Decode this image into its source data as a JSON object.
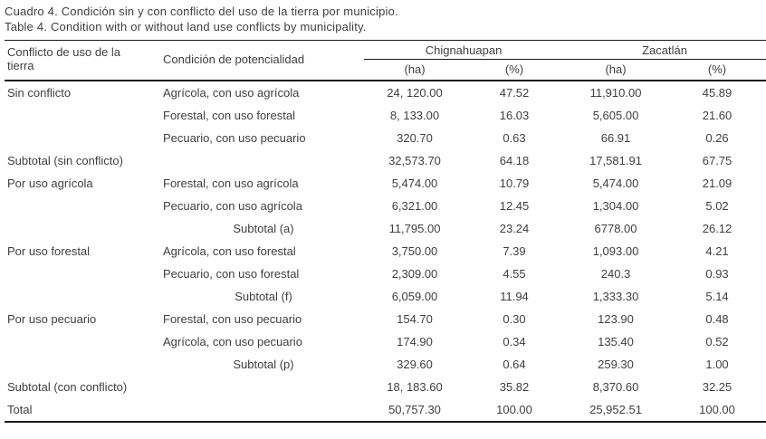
{
  "colors": {
    "text": "#3f3f3f",
    "rule": "#1a1a1a",
    "background": "#ffffff"
  },
  "caption_es": "Cuadro 4. Condición sin y con conflicto del uso de la tierra por municipio.",
  "caption_en": "Table 4. Condition with or without land use conflicts by municipality.",
  "table": {
    "col1_header": "Conflicto de uso de la tierra",
    "col2_header": "Condición de potencialidad",
    "group_headers": [
      "Chignahuapan",
      "Zacatlán"
    ],
    "unit_headers": [
      "(ha)",
      "(%)",
      "(ha)",
      "(%)"
    ],
    "rows": [
      {
        "conflict": "Sin conflicto",
        "condition": "Agrícola, con uso agrícola",
        "condition_centered": false,
        "values": [
          "24, 120.00",
          "47.52",
          "11,910.00",
          "45.89"
        ]
      },
      {
        "conflict": "",
        "condition": "Forestal, con uso forestal",
        "condition_centered": false,
        "values": [
          "8, 133.00",
          "16.03",
          "5,605.00",
          "21.60"
        ]
      },
      {
        "conflict": "",
        "condition": "Pecuario, con uso pecuario",
        "condition_centered": false,
        "values": [
          "320.70",
          "0.63",
          "66.91",
          "0.26"
        ]
      },
      {
        "conflict": "Subtotal (sin conflicto)",
        "condition": "",
        "condition_centered": false,
        "values": [
          "32,573.70",
          "64.18",
          "17,581.91",
          "67.75"
        ]
      },
      {
        "conflict": "Por uso agrícola",
        "condition": "Forestal, con uso agrícola",
        "condition_centered": false,
        "values": [
          "5,474.00",
          "10.79",
          "5,474.00",
          "21.09"
        ]
      },
      {
        "conflict": "",
        "condition": "Pecuario, con uso agrícola",
        "condition_centered": false,
        "values": [
          "6,321.00",
          "12.45",
          "1,304.00",
          "5.02"
        ]
      },
      {
        "conflict": "",
        "condition": "Subtotal (a)",
        "condition_centered": true,
        "values": [
          "11,795.00",
          "23.24",
          "6778.00",
          "26.12"
        ]
      },
      {
        "conflict": "Por uso forestal",
        "condition": "Agrícola, con uso forestal",
        "condition_centered": false,
        "values": [
          "3,750.00",
          "7.39",
          "1,093.00",
          "4.21"
        ]
      },
      {
        "conflict": "",
        "condition": "Pecuario, con uso forestal",
        "condition_centered": false,
        "values": [
          "2,309.00",
          "4.55",
          "240.3",
          "0.93"
        ]
      },
      {
        "conflict": "",
        "condition": "Subtotal (f)",
        "condition_centered": true,
        "values": [
          "6,059.00",
          "11.94",
          "1,333.30",
          "5.14"
        ]
      },
      {
        "conflict": "Por uso pecuario",
        "condition": "Forestal, con uso pecuario",
        "condition_centered": false,
        "values": [
          "154.70",
          "0.30",
          "123.90",
          "0.48"
        ]
      },
      {
        "conflict": "",
        "condition": "Agrícola, con uso pecuario",
        "condition_centered": false,
        "values": [
          "174.90",
          "0.34",
          "135.40",
          "0.52"
        ]
      },
      {
        "conflict": "",
        "condition": "Subtotal (p)",
        "condition_centered": true,
        "values": [
          "329.60",
          "0.64",
          "259.30",
          "1.00"
        ]
      },
      {
        "conflict": "Subtotal (con conflicto)",
        "condition": "",
        "condition_centered": false,
        "values": [
          "18, 183.60",
          "35.82",
          "8,370.60",
          "32.25"
        ]
      },
      {
        "conflict": "Total",
        "condition": "",
        "condition_centered": false,
        "values": [
          "50,757.30",
          "100.00",
          "25,952.51",
          "100.00"
        ]
      }
    ]
  }
}
